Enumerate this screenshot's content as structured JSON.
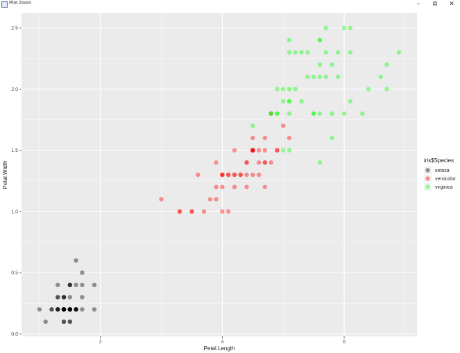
{
  "window": {
    "title": "Plot Zoom",
    "minimize_glyph": "–",
    "maximize_glyph": "⧉",
    "close_glyph": "✕"
  },
  "chart_data": {
    "type": "scatter",
    "title": "",
    "xlabel": "Petal.Length",
    "ylabel": "Petal.Width",
    "xlim": [
      0.705,
      7.195
    ],
    "ylim": [
      -0.02,
      2.62
    ],
    "x_ticks": [
      2,
      4,
      6
    ],
    "x_tick_labels": [
      "2",
      "4",
      "6"
    ],
    "y_ticks": [
      0.0,
      0.5,
      1.0,
      1.5,
      2.0,
      2.5
    ],
    "y_tick_labels": [
      "0.0",
      "0.5",
      "1.0",
      "1.5",
      "2.0",
      "2.5"
    ],
    "grid": true,
    "point_alpha": 0.4,
    "legend": {
      "title": "iris$Species",
      "position": "right"
    },
    "series": [
      {
        "name": "setosa",
        "color": "#000000",
        "x": [
          1.4,
          1.4,
          1.3,
          1.5,
          1.4,
          1.7,
          1.4,
          1.5,
          1.4,
          1.5,
          1.5,
          1.6,
          1.4,
          1.1,
          1.2,
          1.5,
          1.3,
          1.4,
          1.7,
          1.5,
          1.7,
          1.5,
          1.0,
          1.7,
          1.9,
          1.6,
          1.6,
          1.5,
          1.4,
          1.6,
          1.6,
          1.5,
          1.5,
          1.4,
          1.5,
          1.2,
          1.3,
          1.4,
          1.3,
          1.5,
          1.3,
          1.3,
          1.3,
          1.6,
          1.9,
          1.4,
          1.6,
          1.4,
          1.5,
          1.4
        ],
        "y": [
          0.2,
          0.2,
          0.2,
          0.2,
          0.2,
          0.4,
          0.3,
          0.2,
          0.2,
          0.1,
          0.2,
          0.2,
          0.1,
          0.1,
          0.2,
          0.4,
          0.4,
          0.3,
          0.3,
          0.3,
          0.2,
          0.4,
          0.2,
          0.5,
          0.2,
          0.2,
          0.4,
          0.2,
          0.2,
          0.2,
          0.2,
          0.4,
          0.1,
          0.2,
          0.2,
          0.2,
          0.2,
          0.1,
          0.2,
          0.2,
          0.3,
          0.3,
          0.2,
          0.6,
          0.4,
          0.3,
          0.2,
          0.2,
          0.2,
          0.2
        ]
      },
      {
        "name": "versicolor",
        "color": "#ff0000",
        "x": [
          4.7,
          4.5,
          4.9,
          4.0,
          4.6,
          4.5,
          4.7,
          3.3,
          4.6,
          3.9,
          3.5,
          4.2,
          4.0,
          4.7,
          3.6,
          4.4,
          4.5,
          4.1,
          4.5,
          3.9,
          4.8,
          4.0,
          4.9,
          4.7,
          4.3,
          4.4,
          4.8,
          5.0,
          4.5,
          3.5,
          3.8,
          3.7,
          3.9,
          5.1,
          4.5,
          4.5,
          4.7,
          4.4,
          4.1,
          4.0,
          4.4,
          4.6,
          4.0,
          3.3,
          4.2,
          4.2,
          4.2,
          4.3,
          3.0,
          4.1
        ],
        "y": [
          1.4,
          1.5,
          1.5,
          1.3,
          1.5,
          1.3,
          1.6,
          1.0,
          1.3,
          1.4,
          1.0,
          1.5,
          1.0,
          1.4,
          1.3,
          1.4,
          1.5,
          1.0,
          1.5,
          1.1,
          1.8,
          1.3,
          1.5,
          1.2,
          1.3,
          1.4,
          1.4,
          1.7,
          1.5,
          1.0,
          1.1,
          1.0,
          1.2,
          1.6,
          1.5,
          1.6,
          1.5,
          1.3,
          1.3,
          1.3,
          1.2,
          1.4,
          1.2,
          1.0,
          1.3,
          1.2,
          1.3,
          1.3,
          1.1,
          1.3
        ]
      },
      {
        "name": "virginica",
        "color": "#00ff00",
        "x": [
          6.0,
          5.1,
          5.9,
          5.6,
          5.8,
          6.6,
          4.5,
          6.3,
          5.8,
          6.1,
          5.1,
          5.3,
          5.5,
          5.0,
          5.1,
          5.3,
          5.5,
          6.7,
          6.9,
          5.0,
          5.7,
          4.9,
          6.7,
          4.9,
          5.7,
          6.0,
          4.8,
          4.9,
          5.6,
          5.8,
          6.1,
          6.4,
          5.6,
          5.1,
          5.6,
          6.1,
          5.6,
          5.5,
          4.8,
          5.4,
          5.6,
          5.1,
          5.1,
          5.9,
          5.7,
          5.2,
          5.0,
          5.2,
          5.4,
          5.1
        ],
        "y": [
          2.5,
          1.9,
          2.1,
          1.8,
          2.2,
          2.1,
          1.7,
          1.8,
          1.8,
          2.5,
          2.0,
          1.9,
          2.1,
          2.0,
          2.4,
          2.3,
          1.8,
          2.2,
          2.3,
          1.5,
          2.3,
          2.0,
          2.0,
          1.8,
          2.1,
          1.8,
          1.8,
          1.8,
          2.1,
          1.6,
          1.9,
          2.0,
          2.2,
          1.5,
          1.4,
          2.3,
          2.4,
          1.8,
          1.8,
          2.1,
          2.4,
          2.3,
          1.9,
          2.3,
          2.5,
          2.3,
          1.9,
          2.0,
          2.3,
          1.8
        ]
      }
    ]
  }
}
